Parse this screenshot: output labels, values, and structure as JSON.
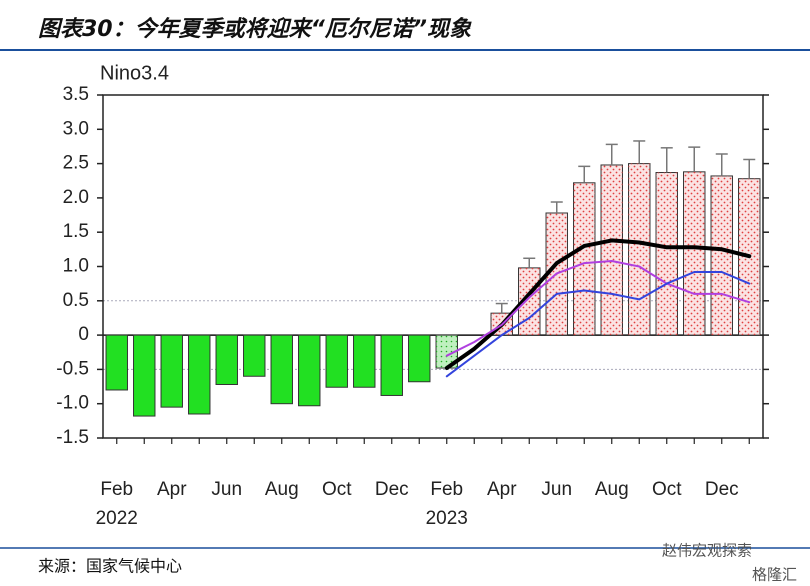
{
  "title": "图表30：今年夏季或将迎来“厄尔尼诺”现象",
  "source": "来源：国家气候中心",
  "watermark": "赵伟宏观探索",
  "watermark_2": "格隆汇",
  "chart_data": {
    "type": "bar",
    "panel_label": "Nino3.4",
    "categories": [
      "Feb 2022",
      null,
      "Apr",
      null,
      "Jun",
      null,
      "Aug",
      null,
      "Oct",
      null,
      "Dec",
      null,
      "Feb 2023",
      null,
      "Apr",
      null,
      "Jun",
      null,
      "Aug",
      null,
      "Oct",
      null,
      "Dec",
      null
    ],
    "ylim": [
      -1.5,
      3.5
    ],
    "yticks": [
      {
        "value": 3.5,
        "label": "3.5"
      },
      {
        "value": 3,
        "label": "3.0"
      },
      {
        "value": 2.5,
        "label": "2.5"
      },
      {
        "value": 2,
        "label": "2.0"
      },
      {
        "value": 1.5,
        "label": "1.5"
      },
      {
        "value": 1,
        "label": "1.0"
      },
      {
        "value": 0.5,
        "label": "0.5"
      },
      0,
      -0.5,
      {
        "value": -1,
        "label": "-1.0"
      },
      -1.5
    ],
    "reference_lines": [
      0.5,
      -0.5
    ],
    "series": [
      {
        "color": "#22e022",
        "values": [
          -0.8,
          -1.18,
          -1.05,
          -1.15,
          -0.72,
          -0.6,
          -1.0,
          -1.03,
          -0.76,
          -0.76,
          -0.88,
          -0.68,
          null,
          null,
          null,
          null,
          null,
          null,
          null,
          null,
          null,
          null,
          null,
          null
        ]
      },
      {
        "color": "#bff0bf",
        "values": [
          null,
          null,
          null,
          null,
          null,
          null,
          null,
          null,
          null,
          null,
          null,
          null,
          -0.48,
          null,
          null,
          null,
          null,
          null,
          null,
          null,
          null,
          null,
          null,
          null
        ]
      },
      {
        "color": "#fbe3e3",
        "values": [
          null,
          null,
          null,
          null,
          null,
          null,
          null,
          null,
          null,
          null,
          null,
          null,
          null,
          null,
          0.32,
          0.98,
          1.78,
          2.22,
          2.48,
          2.5,
          2.37,
          2.38,
          2.32,
          2.28
        ],
        "errors": [
          null,
          null,
          null,
          null,
          null,
          null,
          null,
          null,
          null,
          null,
          null,
          null,
          null,
          null,
          0.14,
          0.14,
          0.16,
          0.24,
          0.3,
          0.33,
          0.36,
          0.36,
          0.32,
          0.28
        ]
      }
    ],
    "lines": [
      {
        "color": "#000000",
        "width": 4,
        "values": [
          null,
          null,
          null,
          null,
          null,
          null,
          null,
          null,
          null,
          null,
          null,
          null,
          -0.48,
          -0.2,
          0.15,
          0.6,
          1.05,
          1.3,
          1.38,
          1.35,
          1.28,
          1.28,
          1.25,
          1.15
        ]
      },
      {
        "color": "#b040e0",
        "width": 2,
        "values": [
          null,
          null,
          null,
          null,
          null,
          null,
          null,
          null,
          null,
          null,
          null,
          null,
          -0.3,
          -0.1,
          0.15,
          0.55,
          0.9,
          1.05,
          1.08,
          1.0,
          0.75,
          0.6,
          0.6,
          0.48
        ]
      },
      {
        "color": "#3344dd",
        "width": 2,
        "values": [
          null,
          null,
          null,
          null,
          null,
          null,
          null,
          null,
          null,
          null,
          null,
          null,
          -0.6,
          -0.3,
          0.0,
          0.25,
          0.6,
          0.65,
          0.6,
          0.52,
          0.75,
          0.92,
          0.92,
          0.75
        ]
      }
    ]
  }
}
